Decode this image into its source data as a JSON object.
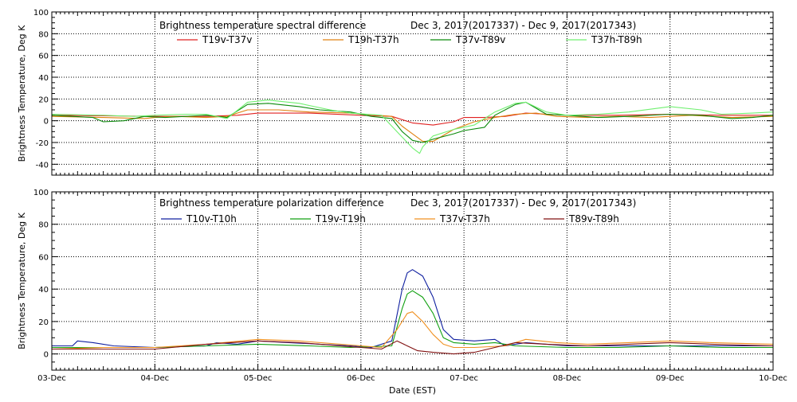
{
  "chart_data": [
    {
      "type": "line",
      "title_left": "Brightness temperature spectral difference",
      "title_right": "Dec  3, 2017(2017337) - Dec  9, 2017(2017343)",
      "ylabel": "Brightness Temperature, Deg K",
      "xlabel": "",
      "ylim": [
        -50,
        100
      ],
      "yticks": [
        -40,
        -20,
        0,
        20,
        40,
        60,
        80,
        100
      ],
      "x_categories": [
        "03-Dec",
        "04-Dec",
        "05-Dec",
        "06-Dec",
        "07-Dec",
        "08-Dec",
        "09-Dec",
        "10-Dec"
      ],
      "x_unit": "days since 03-Dec",
      "grid": true,
      "show_x_tick_labels": false,
      "legend_placement": "top",
      "series": [
        {
          "name": "T19v-T37v",
          "color": "#e02020",
          "points": [
            [
              0,
              5
            ],
            [
              0.5,
              4.5
            ],
            [
              1,
              4
            ],
            [
              1.5,
              4
            ],
            [
              1.8,
              5
            ],
            [
              2,
              7
            ],
            [
              2.5,
              7
            ],
            [
              3,
              5
            ],
            [
              3.3,
              4
            ],
            [
              3.5,
              -2
            ],
            [
              3.7,
              -4
            ],
            [
              3.9,
              -1
            ],
            [
              4,
              3
            ],
            [
              4.2,
              3
            ],
            [
              4.4,
              4
            ],
            [
              4.6,
              7
            ],
            [
              4.8,
              6
            ],
            [
              5,
              5
            ],
            [
              5.5,
              5
            ],
            [
              6,
              6
            ],
            [
              6.5,
              5
            ],
            [
              7,
              5
            ]
          ]
        },
        {
          "name": "T19h-T37h",
          "color": "#e08010",
          "points": [
            [
              0,
              4
            ],
            [
              0.5,
              3
            ],
            [
              0.9,
              2
            ],
            [
              1,
              3
            ],
            [
              1.2,
              4
            ],
            [
              1.5,
              3
            ],
            [
              1.7,
              4
            ],
            [
              1.9,
              10
            ],
            [
              2.2,
              10
            ],
            [
              2.5,
              8
            ],
            [
              2.9,
              7
            ],
            [
              3.3,
              4
            ],
            [
              3.4,
              -5
            ],
            [
              3.5,
              -12
            ],
            [
              3.6,
              -19
            ],
            [
              3.7,
              -19
            ],
            [
              3.9,
              -8
            ],
            [
              4.1,
              -1
            ],
            [
              4.3,
              3
            ],
            [
              4.5,
              6
            ],
            [
              4.7,
              7
            ],
            [
              4.9,
              4
            ],
            [
              5.2,
              3
            ],
            [
              5.5,
              4
            ],
            [
              5.8,
              3
            ],
            [
              6.2,
              5
            ],
            [
              6.6,
              3
            ],
            [
              7,
              4
            ]
          ]
        },
        {
          "name": "T37v-T89v",
          "color": "#0a8a0a",
          "points": [
            [
              0,
              5
            ],
            [
              0.4,
              3
            ],
            [
              0.5,
              -1
            ],
            [
              0.7,
              0
            ],
            [
              0.9,
              4
            ],
            [
              1.1,
              3
            ],
            [
              1.3,
              4
            ],
            [
              1.5,
              5
            ],
            [
              1.7,
              3
            ],
            [
              1.9,
              15
            ],
            [
              2.1,
              16
            ],
            [
              2.4,
              13
            ],
            [
              2.6,
              10
            ],
            [
              2.9,
              8
            ],
            [
              3.1,
              4
            ],
            [
              3.3,
              2
            ],
            [
              3.4,
              -10
            ],
            [
              3.5,
              -18
            ],
            [
              3.6,
              -20
            ],
            [
              3.7,
              -17
            ],
            [
              3.9,
              -12
            ],
            [
              4,
              -9
            ],
            [
              4.2,
              -6
            ],
            [
              4.3,
              5
            ],
            [
              4.5,
              15
            ],
            [
              4.6,
              17
            ],
            [
              4.8,
              6
            ],
            [
              5,
              5
            ],
            [
              5.3,
              3
            ],
            [
              5.6,
              4
            ],
            [
              6,
              6
            ],
            [
              6.3,
              5
            ],
            [
              6.6,
              2
            ],
            [
              6.8,
              3
            ],
            [
              7,
              5
            ]
          ]
        },
        {
          "name": "T37h-T89h",
          "color": "#70f070",
          "points": [
            [
              0,
              6
            ],
            [
              0.5,
              5
            ],
            [
              0.8,
              4
            ],
            [
              1,
              5
            ],
            [
              1.3,
              6
            ],
            [
              1.5,
              6
            ],
            [
              1.7,
              2
            ],
            [
              1.9,
              17
            ],
            [
              2.1,
              19
            ],
            [
              2.4,
              16
            ],
            [
              2.7,
              10
            ],
            [
              2.9,
              7
            ],
            [
              3.2,
              5
            ],
            [
              3.3,
              -5
            ],
            [
              3.4,
              -15
            ],
            [
              3.5,
              -25
            ],
            [
              3.57,
              -30
            ],
            [
              3.6,
              -24
            ],
            [
              3.7,
              -14
            ],
            [
              3.9,
              -8
            ],
            [
              4.1,
              -4
            ],
            [
              4.3,
              8
            ],
            [
              4.5,
              16
            ],
            [
              4.6,
              17
            ],
            [
              4.8,
              8
            ],
            [
              5,
              5
            ],
            [
              5.3,
              6
            ],
            [
              5.6,
              8
            ],
            [
              6,
              13
            ],
            [
              6.3,
              10
            ],
            [
              6.5,
              6
            ],
            [
              6.8,
              7
            ],
            [
              7,
              8
            ]
          ]
        }
      ]
    },
    {
      "type": "line",
      "title_left": "Brightness temperature polarization difference",
      "title_right": "Dec  3, 2017(2017337) - Dec  9, 2017(2017343)",
      "ylabel": "Brightness Temperature, Deg K",
      "xlabel": "Date (EST)",
      "ylim": [
        -10,
        100
      ],
      "yticks": [
        0,
        20,
        40,
        60,
        80,
        100
      ],
      "x_categories": [
        "03-Dec",
        "04-Dec",
        "05-Dec",
        "06-Dec",
        "07-Dec",
        "08-Dec",
        "09-Dec",
        "10-Dec"
      ],
      "x_unit": "days since 03-Dec",
      "grid": true,
      "show_x_tick_labels": true,
      "legend_placement": "top",
      "series": [
        {
          "name": "T10v-T10h",
          "color": "#1020a0",
          "points": [
            [
              0,
              5
            ],
            [
              0.2,
              5
            ],
            [
              0.25,
              8
            ],
            [
              0.4,
              7
            ],
            [
              0.6,
              5
            ],
            [
              1,
              4
            ],
            [
              1.5,
              5
            ],
            [
              1.6,
              7
            ],
            [
              1.8,
              6
            ],
            [
              2,
              8
            ],
            [
              2.3,
              7
            ],
            [
              2.6,
              6
            ],
            [
              2.9,
              5
            ],
            [
              3.1,
              4
            ],
            [
              3.3,
              8
            ],
            [
              3.4,
              40
            ],
            [
              3.45,
              50
            ],
            [
              3.5,
              52
            ],
            [
              3.6,
              48
            ],
            [
              3.7,
              35
            ],
            [
              3.8,
              15
            ],
            [
              3.9,
              9
            ],
            [
              4.1,
              8
            ],
            [
              4.3,
              9
            ],
            [
              4.4,
              5
            ],
            [
              4.6,
              7
            ],
            [
              4.8,
              6
            ],
            [
              5,
              5
            ],
            [
              5.4,
              5
            ],
            [
              5.8,
              5
            ],
            [
              6.2,
              5
            ],
            [
              6.6,
              5
            ],
            [
              7,
              5
            ]
          ]
        },
        {
          "name": "T19v-T19h",
          "color": "#10a010",
          "points": [
            [
              0,
              4
            ],
            [
              0.5,
              4
            ],
            [
              1,
              4
            ],
            [
              1.5,
              5
            ],
            [
              2,
              6
            ],
            [
              2.5,
              5
            ],
            [
              2.9,
              4
            ],
            [
              3.3,
              5
            ],
            [
              3.4,
              28
            ],
            [
              3.45,
              37
            ],
            [
              3.5,
              39
            ],
            [
              3.6,
              35
            ],
            [
              3.7,
              25
            ],
            [
              3.8,
              10
            ],
            [
              3.9,
              7
            ],
            [
              4.1,
              6
            ],
            [
              4.3,
              7
            ],
            [
              4.5,
              5
            ],
            [
              5,
              4
            ],
            [
              5.5,
              4
            ],
            [
              6,
              5
            ],
            [
              6.5,
              4
            ],
            [
              7,
              4
            ]
          ]
        },
        {
          "name": "T37v-T37h",
          "color": "#f09020",
          "points": [
            [
              0,
              3
            ],
            [
              0.5,
              4
            ],
            [
              1,
              4
            ],
            [
              1.5,
              6
            ],
            [
              2,
              9
            ],
            [
              2.4,
              8
            ],
            [
              2.8,
              6
            ],
            [
              3.2,
              4
            ],
            [
              3.35,
              15
            ],
            [
              3.45,
              25
            ],
            [
              3.5,
              26
            ],
            [
              3.6,
              20
            ],
            [
              3.7,
              12
            ],
            [
              3.8,
              6
            ],
            [
              3.9,
              4
            ],
            [
              4.1,
              4
            ],
            [
              4.4,
              5
            ],
            [
              4.6,
              9
            ],
            [
              4.9,
              7
            ],
            [
              5.2,
              6
            ],
            [
              5.6,
              7
            ],
            [
              6,
              8
            ],
            [
              6.4,
              7
            ],
            [
              7,
              6
            ]
          ]
        },
        {
          "name": "T89v-T89h",
          "color": "#801010",
          "points": [
            [
              0,
              3
            ],
            [
              0.5,
              3
            ],
            [
              1,
              3
            ],
            [
              1.5,
              6
            ],
            [
              2,
              8
            ],
            [
              2.4,
              7
            ],
            [
              2.8,
              5
            ],
            [
              3.2,
              3
            ],
            [
              3.35,
              8
            ],
            [
              3.45,
              5
            ],
            [
              3.55,
              2
            ],
            [
              3.7,
              1
            ],
            [
              3.9,
              0
            ],
            [
              4.1,
              1
            ],
            [
              4.3,
              4
            ],
            [
              4.5,
              7
            ],
            [
              4.8,
              6
            ],
            [
              5.2,
              5
            ],
            [
              5.6,
              6
            ],
            [
              6,
              7
            ],
            [
              6.4,
              6
            ],
            [
              7,
              5
            ]
          ]
        }
      ]
    }
  ]
}
